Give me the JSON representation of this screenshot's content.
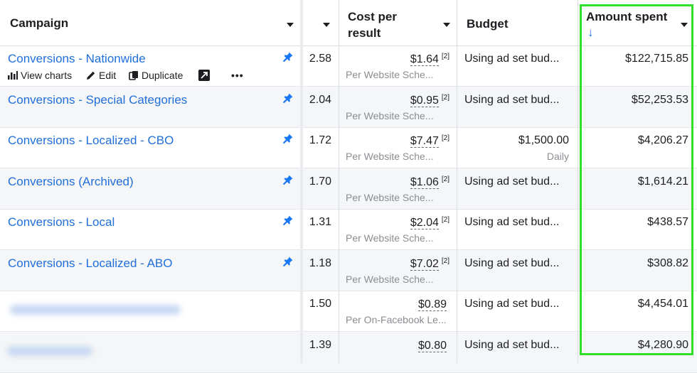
{
  "headers": {
    "campaign": "Campaign",
    "cost_line1": "Cost per",
    "cost_line2": "result",
    "budget": "Budget",
    "spent": "Amount spent",
    "sort_arrow": "↓"
  },
  "row_actions": {
    "view_charts": "View charts",
    "edit": "Edit",
    "duplicate": "Duplicate",
    "more": "•••"
  },
  "rows": [
    {
      "name": "Conversions - Nationwide",
      "results": "2.58",
      "cost": "$1.64",
      "cost_ref": "[2]",
      "cost_sub": "Per Website Sche...",
      "budget": "Using ad set bud...",
      "budget_sub": "",
      "spent": "$122,715.85"
    },
    {
      "name": "Conversions - Special Categories",
      "results": "2.04",
      "cost": "$0.95",
      "cost_ref": "[2]",
      "cost_sub": "Per Website Sche...",
      "budget": "Using ad set bud...",
      "budget_sub": "",
      "spent": "$52,253.53"
    },
    {
      "name": "Conversions - Localized - CBO",
      "results": "1.72",
      "cost": "$7.47",
      "cost_ref": "[2]",
      "cost_sub": "Per Website Sche...",
      "budget": "$1,500.00",
      "budget_sub": "Daily",
      "spent": "$4,206.27"
    },
    {
      "name": "Conversions (Archived)",
      "results": "1.70",
      "cost": "$1.06",
      "cost_ref": "[2]",
      "cost_sub": "Per Website Sche...",
      "budget": "Using ad set bud...",
      "budget_sub": "",
      "spent": "$1,614.21"
    },
    {
      "name": "Conversions - Local",
      "results": "1.31",
      "cost": "$2.04",
      "cost_ref": "[2]",
      "cost_sub": "Per Website Sche...",
      "budget": "Using ad set bud...",
      "budget_sub": "",
      "spent": "$438.57"
    },
    {
      "name": "Conversions - Localized - ABO",
      "results": "1.18",
      "cost": "$7.02",
      "cost_ref": "[2]",
      "cost_sub": "Per Website Sche...",
      "budget": "Using ad set bud...",
      "budget_sub": "",
      "spent": "$308.82"
    },
    {
      "name": "",
      "results": "1.50",
      "cost": "$0.89",
      "cost_ref": "",
      "cost_sub": "Per On-Facebook Le...",
      "budget": "Using ad set bud...",
      "budget_sub": "",
      "spent": "$4,454.01"
    },
    {
      "name": "",
      "results": "1.39",
      "cost": "$0.80",
      "cost_ref": "",
      "cost_sub": "",
      "budget": "Using ad set bud...",
      "budget_sub": "",
      "spent": "$4,280.90"
    }
  ],
  "colors": {
    "link": "#216fdb",
    "sort_arrow": "#1877f2",
    "highlight": "#2ee02b"
  }
}
